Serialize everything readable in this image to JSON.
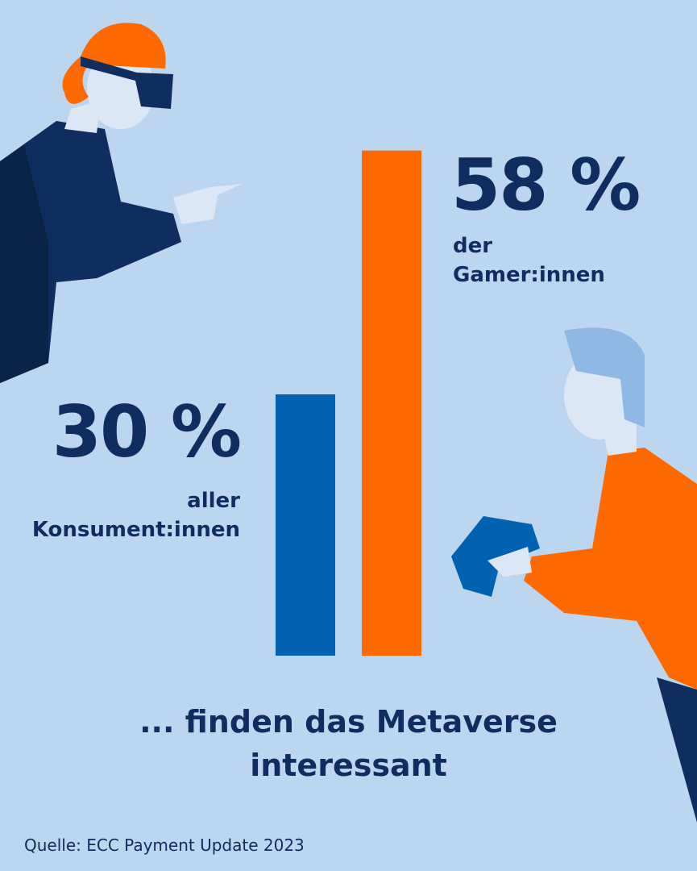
{
  "chart_data": {
    "type": "bar",
    "categories": [
      "aller Konsument:innen",
      "der Gamer:innen"
    ],
    "values": [
      30,
      58
    ],
    "value_labels": [
      "30 %",
      "58 %"
    ],
    "colors": [
      "#0062b0",
      "#ff6a00"
    ],
    "annotation": "... finden das Metaverse interessant",
    "source": "Quelle: ECC Payment Update 2023"
  }
}
